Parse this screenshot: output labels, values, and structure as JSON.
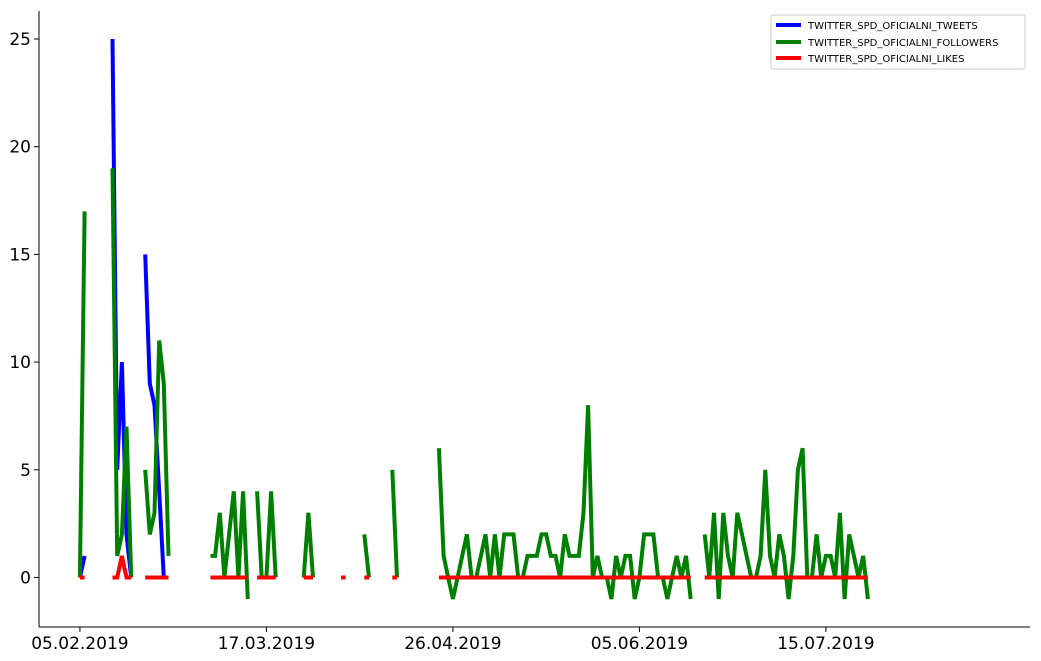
{
  "chart_data": {
    "type": "line",
    "title": "",
    "xlabel": "",
    "ylabel": "",
    "x_start": "05.02.2019",
    "x_end": "19.08.2019",
    "xlim": [
      "05.02.2019",
      "19.08.2019"
    ],
    "ylim": [
      -2.3,
      26.3
    ],
    "x_ticks": [
      "05.02.2019",
      "17.03.2019",
      "26.04.2019",
      "05.06.2019",
      "15.07.2019"
    ],
    "y_ticks": [
      0,
      5,
      10,
      15,
      20,
      25
    ],
    "grid": false,
    "legend_position": "top-right",
    "series": [
      {
        "name": "TWITTER_SPD_OFICIALNI_TWEETS",
        "color": "#0000ff",
        "values": [
          [
            0,
            0
          ],
          [
            1,
            1
          ],
          null,
          [
            7,
            25
          ],
          [
            8,
            5
          ],
          [
            9,
            10
          ],
          [
            10,
            2
          ],
          [
            11,
            0
          ],
          null,
          [
            14,
            15
          ],
          [
            15,
            9
          ],
          [
            16,
            8
          ],
          [
            17,
            4
          ],
          [
            18,
            0
          ]
        ]
      },
      {
        "name": "TWITTER_SPD_OFICIALNI_FOLLOWERS",
        "color": "#008000",
        "values": [
          [
            0,
            0
          ],
          [
            1,
            17
          ],
          null,
          [
            7,
            19
          ],
          [
            8,
            1
          ],
          [
            9,
            2
          ],
          [
            10,
            7
          ],
          [
            11,
            0
          ],
          null,
          [
            14,
            5
          ],
          [
            15,
            2
          ],
          [
            16,
            3
          ],
          [
            17,
            11
          ],
          [
            18,
            9
          ],
          [
            19,
            1
          ],
          null,
          [
            28,
            1
          ],
          [
            29,
            1
          ],
          [
            30,
            3
          ],
          [
            31,
            0
          ],
          [
            32,
            2
          ],
          [
            33,
            4
          ],
          [
            34,
            0
          ],
          [
            35,
            4
          ],
          [
            36,
            -1
          ],
          null,
          [
            38,
            4
          ],
          [
            39,
            0
          ],
          [
            40,
            0
          ],
          [
            41,
            4
          ],
          [
            42,
            0
          ],
          null,
          [
            48,
            0
          ],
          [
            49,
            3
          ],
          [
            50,
            0
          ],
          null,
          [
            61,
            2
          ],
          [
            62,
            0
          ],
          null,
          [
            67,
            5
          ],
          [
            68,
            0
          ],
          null,
          [
            77,
            6
          ],
          [
            78,
            1
          ],
          [
            79,
            0
          ],
          [
            80,
            -1
          ],
          [
            81,
            0
          ],
          [
            82,
            1
          ],
          [
            83,
            2
          ],
          [
            84,
            0
          ],
          [
            85,
            0
          ],
          [
            86,
            1
          ],
          [
            87,
            2
          ],
          [
            88,
            0
          ],
          [
            89,
            2
          ],
          [
            90,
            0
          ],
          [
            91,
            2
          ],
          [
            92,
            2
          ],
          [
            93,
            2
          ],
          [
            94,
            0
          ],
          [
            95,
            0
          ],
          [
            96,
            1
          ],
          [
            97,
            1
          ],
          [
            98,
            1
          ],
          [
            99,
            2
          ],
          [
            100,
            2
          ],
          [
            101,
            1
          ],
          [
            102,
            1
          ],
          [
            103,
            0
          ],
          [
            104,
            2
          ],
          [
            105,
            1
          ],
          [
            106,
            1
          ],
          [
            107,
            1
          ],
          [
            108,
            3
          ],
          [
            109,
            8
          ],
          [
            110,
            0
          ],
          [
            111,
            1
          ],
          [
            112,
            0
          ],
          [
            113,
            0
          ],
          [
            114,
            -1
          ],
          [
            115,
            1
          ],
          [
            116,
            0
          ],
          [
            117,
            1
          ],
          [
            118,
            1
          ],
          [
            119,
            -1
          ],
          [
            120,
            0
          ],
          [
            121,
            2
          ],
          [
            122,
            2
          ],
          [
            123,
            2
          ],
          [
            124,
            0
          ],
          [
            125,
            0
          ],
          [
            126,
            -1
          ],
          [
            127,
            0
          ],
          [
            128,
            1
          ],
          [
            129,
            0
          ],
          [
            130,
            1
          ],
          [
            131,
            -1
          ],
          null,
          [
            134,
            2
          ],
          [
            135,
            0
          ],
          [
            136,
            3
          ],
          [
            137,
            -1
          ],
          [
            138,
            3
          ],
          [
            139,
            1
          ],
          [
            140,
            0
          ],
          [
            141,
            3
          ],
          [
            142,
            2
          ],
          [
            143,
            1
          ],
          [
            144,
            0
          ],
          [
            145,
            0
          ],
          [
            146,
            1
          ],
          [
            147,
            5
          ],
          [
            148,
            1
          ],
          [
            149,
            0
          ],
          [
            150,
            2
          ],
          [
            151,
            1
          ],
          [
            152,
            -1
          ],
          [
            153,
            1
          ],
          [
            154,
            5
          ],
          [
            155,
            6
          ],
          [
            156,
            0
          ],
          [
            157,
            0
          ],
          [
            158,
            2
          ],
          [
            159,
            0
          ],
          [
            160,
            1
          ],
          [
            161,
            1
          ],
          [
            162,
            0
          ],
          [
            163,
            3
          ],
          [
            164,
            -1
          ],
          [
            165,
            2
          ],
          [
            166,
            1
          ],
          [
            167,
            0
          ],
          [
            168,
            1
          ],
          [
            169,
            -1
          ]
        ]
      },
      {
        "name": "TWITTER_SPD_OFICIALNI_LIKES",
        "color": "#ff0000",
        "values": [
          [
            0,
            0
          ],
          [
            1,
            0
          ],
          null,
          [
            7,
            0
          ],
          [
            8,
            0
          ],
          [
            9,
            1
          ],
          [
            10,
            0
          ],
          [
            11,
            0
          ],
          null,
          [
            14,
            0
          ],
          [
            15,
            0
          ],
          [
            16,
            0
          ],
          [
            17,
            0
          ],
          [
            18,
            0
          ],
          [
            19,
            0
          ],
          null,
          [
            28,
            0
          ],
          [
            29,
            0
          ],
          [
            30,
            0
          ],
          [
            31,
            0
          ],
          [
            32,
            0
          ],
          [
            33,
            0
          ],
          [
            34,
            0
          ],
          [
            35,
            0
          ],
          [
            36,
            0
          ],
          null,
          [
            38,
            0
          ],
          [
            39,
            0
          ],
          [
            40,
            0
          ],
          [
            41,
            0
          ],
          [
            42,
            0
          ],
          null,
          [
            48,
            0
          ],
          [
            49,
            0
          ],
          [
            50,
            0
          ],
          null,
          [
            56,
            0
          ],
          [
            57,
            0
          ],
          null,
          [
            61,
            0
          ],
          [
            62,
            0
          ],
          null,
          [
            67,
            0
          ],
          [
            68,
            0
          ],
          null,
          [
            77,
            0
          ],
          [
            78,
            0
          ],
          [
            79,
            0
          ],
          [
            80,
            0
          ],
          [
            81,
            0
          ],
          [
            82,
            0
          ],
          [
            83,
            0
          ],
          [
            84,
            0
          ],
          [
            85,
            0
          ],
          [
            86,
            0
          ],
          [
            87,
            0
          ],
          [
            88,
            0
          ],
          [
            89,
            0
          ],
          [
            90,
            0
          ],
          [
            91,
            0
          ],
          [
            92,
            0
          ],
          [
            93,
            0
          ],
          [
            94,
            0
          ],
          [
            95,
            0
          ],
          [
            96,
            0
          ],
          [
            97,
            0
          ],
          [
            98,
            0
          ],
          [
            99,
            0
          ],
          [
            100,
            0
          ],
          [
            101,
            0
          ],
          [
            102,
            0
          ],
          [
            103,
            0
          ],
          [
            104,
            0
          ],
          [
            105,
            0
          ],
          [
            106,
            0
          ],
          [
            107,
            0
          ],
          [
            108,
            0
          ],
          [
            109,
            0
          ],
          [
            110,
            0
          ],
          [
            111,
            0
          ],
          [
            112,
            0
          ],
          [
            113,
            0
          ],
          [
            114,
            0
          ],
          [
            115,
            0
          ],
          [
            116,
            0
          ],
          [
            117,
            0
          ],
          [
            118,
            0
          ],
          [
            119,
            0
          ],
          [
            120,
            0
          ],
          [
            121,
            0
          ],
          [
            122,
            0
          ],
          [
            123,
            0
          ],
          [
            124,
            0
          ],
          [
            125,
            0
          ],
          [
            126,
            0
          ],
          [
            127,
            0
          ],
          [
            128,
            0
          ],
          [
            129,
            0
          ],
          [
            130,
            0
          ],
          [
            131,
            0
          ],
          null,
          [
            134,
            0
          ],
          [
            135,
            0
          ],
          [
            136,
            0
          ],
          [
            137,
            0
          ],
          [
            138,
            0
          ],
          [
            139,
            0
          ],
          [
            140,
            0
          ],
          [
            141,
            0
          ],
          [
            142,
            0
          ],
          [
            143,
            0
          ],
          [
            144,
            0
          ],
          [
            145,
            0
          ],
          [
            146,
            0
          ],
          [
            147,
            0
          ],
          [
            148,
            0
          ],
          [
            149,
            0
          ],
          [
            150,
            0
          ],
          [
            151,
            0
          ],
          [
            152,
            0
          ],
          [
            153,
            0
          ],
          [
            154,
            0
          ],
          [
            155,
            0
          ],
          [
            156,
            0
          ],
          [
            157,
            0
          ],
          [
            158,
            0
          ],
          [
            159,
            0
          ],
          [
            160,
            0
          ],
          [
            161,
            0
          ],
          [
            162,
            0
          ],
          [
            163,
            0
          ],
          [
            164,
            0
          ],
          [
            165,
            0
          ],
          [
            166,
            0
          ],
          [
            167,
            0
          ],
          [
            168,
            0
          ],
          [
            169,
            0
          ]
        ]
      }
    ]
  }
}
